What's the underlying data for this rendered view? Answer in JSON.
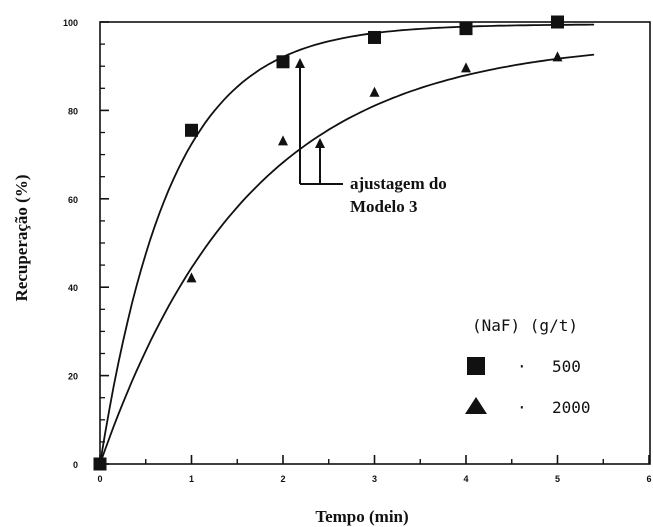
{
  "chart_data": {
    "type": "scatter",
    "xlabel": "Tempo (min)",
    "ylabel": "Recuperação (%)",
    "xlim": [
      0,
      6
    ],
    "ylim": [
      0,
      100
    ],
    "x_ticks": [
      "0",
      "1",
      "2",
      "3",
      "4",
      "5",
      "6"
    ],
    "y_ticks": [
      "0",
      "20",
      "40",
      "60",
      "80",
      "100"
    ],
    "grid": false,
    "legend": {
      "title": "(NaF) (g/t)",
      "placement": "bottom-right",
      "separator": "·"
    },
    "annotation": {
      "line1": "ajustagem do",
      "line2": "Modelo 3"
    },
    "series": [
      {
        "name": "500",
        "marker": "square",
        "x": [
          0,
          1,
          2,
          3,
          4,
          5
        ],
        "y": [
          0,
          75.5,
          91,
          96.5,
          98.5,
          100
        ],
        "fit": {
          "model": "1 - exp(-k t)",
          "rmax": 99.5,
          "k": 1.3
        }
      },
      {
        "name": "2000",
        "marker": "triangle",
        "x": [
          0,
          1,
          2,
          3,
          4,
          5
        ],
        "y": [
          0,
          42,
          73,
          84,
          89.5,
          92
        ],
        "fit": {
          "model": "1 - exp(-k t)",
          "rmax": 96,
          "k": 0.62
        }
      }
    ]
  }
}
